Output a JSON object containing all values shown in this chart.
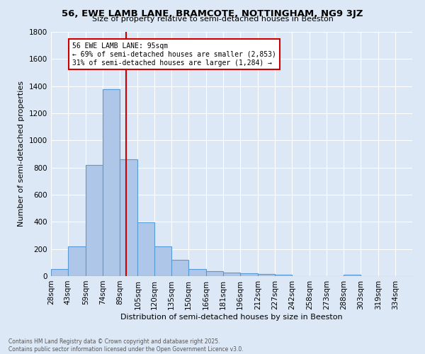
{
  "title": "56, EWE LAMB LANE, BRAMCOTE, NOTTINGHAM, NG9 3JZ",
  "subtitle": "Size of property relative to semi-detached houses in Beeston",
  "xlabel": "Distribution of semi-detached houses by size in Beeston",
  "ylabel": "Number of semi-detached properties",
  "bar_labels": [
    "28sqm",
    "43sqm",
    "59sqm",
    "74sqm",
    "89sqm",
    "105sqm",
    "120sqm",
    "135sqm",
    "150sqm",
    "166sqm",
    "181sqm",
    "196sqm",
    "212sqm",
    "227sqm",
    "242sqm",
    "258sqm",
    "273sqm",
    "288sqm",
    "303sqm",
    "319sqm",
    "334sqm"
  ],
  "bar_values": [
    50,
    220,
    820,
    1380,
    860,
    395,
    220,
    120,
    50,
    35,
    25,
    20,
    15,
    10,
    0,
    0,
    0,
    10,
    0,
    0,
    0
  ],
  "bar_color": "#aec6e8",
  "bar_edge_color": "#5b9bd5",
  "property_line_x": 95,
  "property_line_color": "#cc0000",
  "annotation_line1": "56 EWE LAMB LANE: 95sqm",
  "annotation_line2": "← 69% of semi-detached houses are smaller (2,853)",
  "annotation_line3": "31% of semi-detached houses are larger (1,284) →",
  "annotation_box_color": "#ffffff",
  "annotation_box_edge": "#cc0000",
  "ylim": [
    0,
    1800
  ],
  "yticks": [
    0,
    200,
    400,
    600,
    800,
    1000,
    1200,
    1400,
    1600,
    1800
  ],
  "background_color": "#dce8f5",
  "grid_color": "#ffffff",
  "footer_line1": "Contains HM Land Registry data © Crown copyright and database right 2025.",
  "footer_line2": "Contains public sector information licensed under the Open Government Licence v3.0.",
  "bin_edges": [
    28,
    43,
    59,
    74,
    89,
    105,
    120,
    135,
    150,
    166,
    181,
    196,
    212,
    227,
    242,
    258,
    273,
    288,
    303,
    319,
    334,
    349
  ]
}
